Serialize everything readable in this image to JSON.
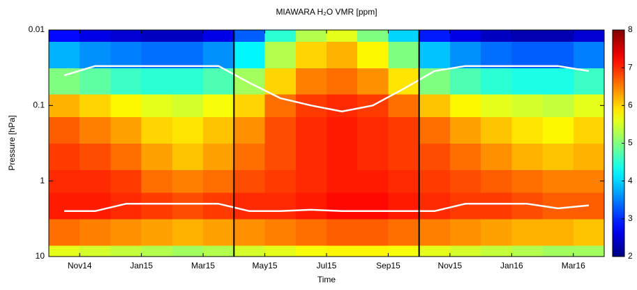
{
  "chart_data": {
    "type": "heatmap",
    "title": "MIAWARA H₂O VMR [ppm]",
    "xlabel": "Time",
    "ylabel": "Pressure [hPa]",
    "x": [
      "2014-10",
      "2014-11",
      "2014-12",
      "2015-01",
      "2015-02",
      "2015-03",
      "2015-04",
      "2015-05",
      "2015-06",
      "2015-07",
      "2015-08",
      "2015-09",
      "2015-10",
      "2015-11",
      "2015-12",
      "2016-01",
      "2016-02",
      "2016-03"
    ],
    "y": [
      10,
      5,
      2,
      1,
      0.5,
      0.2,
      0.1,
      0.05,
      0.02,
      0.01
    ],
    "z": [
      [
        5.6,
        5.5,
        5.4,
        5.3,
        5.2,
        5.3,
        5.5,
        5.6,
        5.7,
        5.8,
        5.8,
        5.7,
        5.6,
        5.5,
        5.4,
        5.3,
        5.2,
        5.2
      ],
      [
        6.6,
        6.5,
        6.4,
        6.3,
        6.2,
        6.3,
        6.4,
        6.5,
        6.6,
        6.7,
        6.7,
        6.6,
        6.5,
        6.4,
        6.3,
        6.2,
        6.2,
        6.1
      ],
      [
        7.1,
        7.1,
        7.0,
        6.9,
        6.8,
        6.9,
        7.0,
        7.0,
        7.1,
        7.2,
        7.2,
        7.1,
        7.0,
        6.9,
        6.9,
        6.8,
        6.7,
        6.7
      ],
      [
        7.0,
        7.0,
        6.9,
        6.6,
        6.5,
        6.6,
        6.8,
        6.9,
        7.0,
        7.1,
        7.1,
        7.0,
        6.9,
        6.8,
        6.7,
        6.6,
        6.5,
        6.5
      ],
      [
        6.9,
        6.8,
        6.6,
        6.3,
        6.1,
        6.3,
        6.6,
        6.8,
        7.0,
        7.1,
        7.0,
        6.9,
        6.8,
        6.6,
        6.4,
        6.2,
        6.1,
        6.2
      ],
      [
        6.7,
        6.5,
        6.3,
        6.0,
        5.9,
        6.1,
        6.4,
        6.8,
        7.0,
        7.1,
        7.0,
        6.9,
        6.6,
        6.3,
        6.1,
        5.9,
        5.8,
        6.0
      ],
      [
        6.2,
        6.0,
        5.8,
        5.6,
        5.5,
        5.7,
        6.0,
        6.6,
        6.9,
        7.0,
        6.9,
        6.6,
        6.1,
        5.8,
        5.6,
        5.5,
        5.4,
        5.6
      ],
      [
        5.0,
        4.8,
        4.6,
        4.5,
        4.5,
        4.7,
        5.2,
        6.0,
        6.5,
        6.6,
        6.4,
        5.9,
        5.0,
        4.7,
        4.5,
        4.4,
        4.4,
        4.6
      ],
      [
        3.8,
        3.6,
        3.5,
        3.4,
        3.4,
        3.6,
        4.2,
        5.3,
        6.0,
        6.2,
        5.8,
        5.0,
        3.9,
        3.6,
        3.4,
        3.3,
        3.3,
        3.5
      ],
      [
        2.8,
        2.6,
        2.5,
        2.4,
        2.4,
        2.6,
        3.3,
        4.5,
        5.3,
        5.6,
        5.0,
        4.0,
        2.9,
        2.6,
        2.4,
        2.3,
        2.3,
        2.5
      ]
    ],
    "lines": [
      {
        "color": "#ffffff",
        "values": [
          0.04,
          0.03,
          0.03,
          0.03,
          0.03,
          0.03,
          0.05,
          0.08,
          0.1,
          0.12,
          0.1,
          0.06,
          0.035,
          0.03,
          0.03,
          0.03,
          0.03,
          0.035
        ]
      },
      {
        "color": "#ffffff",
        "values": [
          2.5,
          2.5,
          2.0,
          2.0,
          2.0,
          2.0,
          2.5,
          2.5,
          2.4,
          2.5,
          2.5,
          2.5,
          2.5,
          2.0,
          2.0,
          2.0,
          2.3,
          2.1
        ]
      }
    ],
    "vlines": [
      "2015-04",
      "2015-10"
    ],
    "vline_color": "#000000",
    "xlim": [
      "2014-10",
      "2016-04"
    ],
    "xticks": [
      {
        "value": "2014-11",
        "label": "Nov14"
      },
      {
        "value": "2015-01",
        "label": "Jan15"
      },
      {
        "value": "2015-03",
        "label": "Mar15"
      },
      {
        "value": "2015-05",
        "label": "May15"
      },
      {
        "value": "2015-07",
        "label": "Jul15"
      },
      {
        "value": "2015-09",
        "label": "Sep15"
      },
      {
        "value": "2015-11",
        "label": "Nov15"
      },
      {
        "value": "2016-01",
        "label": "Jan16"
      },
      {
        "value": "2016-03",
        "label": "Mar16"
      }
    ],
    "ylim": [
      10,
      0.01
    ],
    "yticks": [
      0.01,
      0.1,
      1,
      10
    ],
    "ylog": true,
    "colormap": "jet",
    "zlim": [
      2,
      8
    ],
    "zticks": [
      2,
      3,
      4,
      5,
      6,
      7,
      8
    ]
  }
}
